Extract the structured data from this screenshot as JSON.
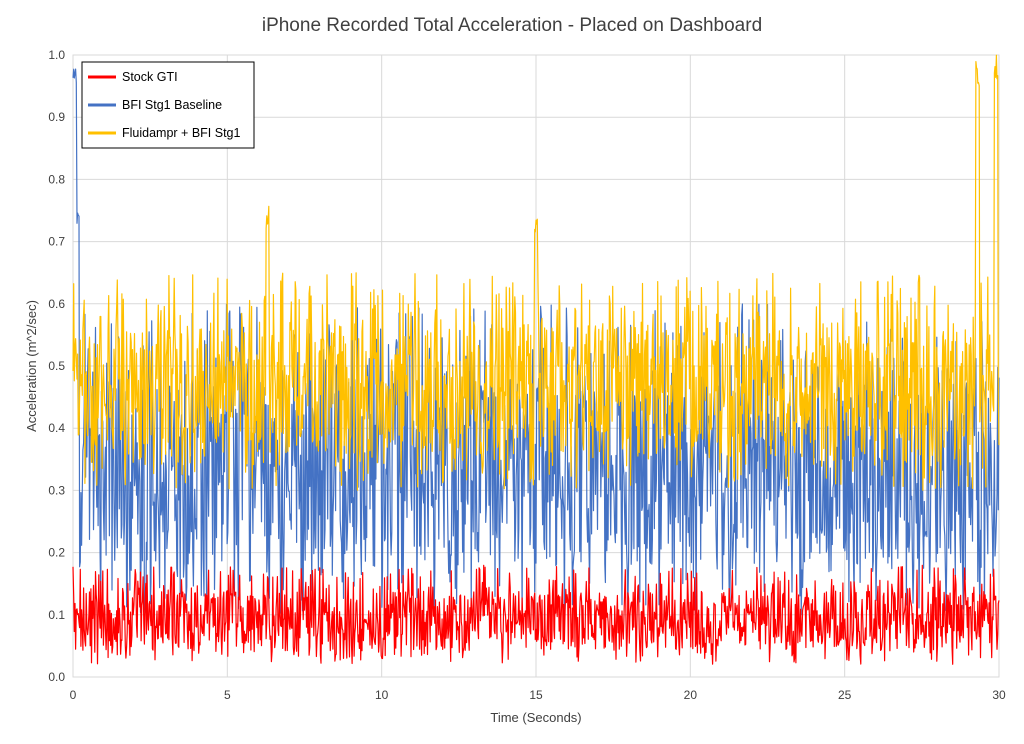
{
  "chart_data": {
    "type": "line",
    "title": "iPhone Recorded Total Acceleration - Placed on Dashboard",
    "xlabel": "Time (Seconds)",
    "ylabel": "Acceleration (m^2/sec)",
    "xlim": [
      0,
      30
    ],
    "ylim": [
      0,
      1.0
    ],
    "x_ticks": [
      "0",
      "5",
      "10",
      "15",
      "20",
      "25",
      "30"
    ],
    "y_ticks": [
      "0.0",
      "0.1",
      "0.2",
      "0.3",
      "0.4",
      "0.5",
      "0.6",
      "0.7",
      "0.8",
      "0.9",
      "1.0"
    ],
    "grid": true,
    "legend_position": "top-left",
    "series": [
      {
        "name": "Stock GTI",
        "color": "#ff0000",
        "typical_range": [
          0.02,
          0.18
        ],
        "mean": 0.09
      },
      {
        "name": "BFI Stg1 Baseline",
        "color": "#4472c4",
        "typical_range": [
          0.1,
          0.6
        ],
        "mean": 0.33,
        "peaks": [
          {
            "x": 0.05,
            "y": 1.0
          },
          {
            "x": 0.15,
            "y": 0.75
          }
        ]
      },
      {
        "name": "Fluidampr + BFI Stg1",
        "color": "#ffc000",
        "typical_range": [
          0.3,
          0.65
        ],
        "mean": 0.46,
        "peaks": [
          {
            "x": 6.3,
            "y": 0.76
          },
          {
            "x": 15.0,
            "y": 0.74
          },
          {
            "x": 29.3,
            "y": 1.0
          },
          {
            "x": 29.9,
            "y": 1.0
          }
        ]
      }
    ]
  }
}
